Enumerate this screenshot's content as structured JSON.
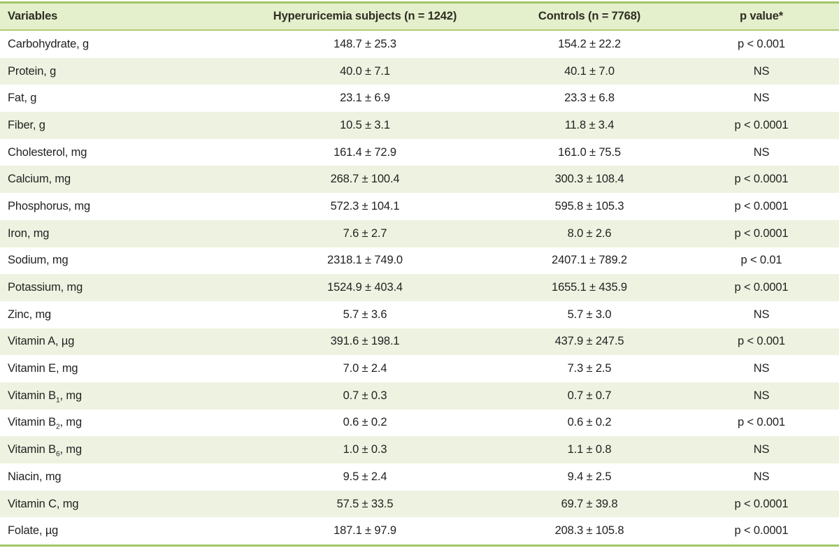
{
  "table": {
    "columns": [
      "Variables",
      "Hyperuricemia subjects (n = 1242)",
      "Controls (n = 7768)",
      "p value*"
    ],
    "rows": [
      {
        "label": "Carbohydrate, g",
        "sub": "",
        "suffix": "",
        "hyperuricemia": "148.7 ± 25.3",
        "controls": "154.2 ± 22.2",
        "p": "p < 0.001"
      },
      {
        "label": "Protein, g",
        "sub": "",
        "suffix": "",
        "hyperuricemia": "40.0 ± 7.1",
        "controls": "40.1 ± 7.0",
        "p": "NS"
      },
      {
        "label": "Fat, g",
        "sub": "",
        "suffix": "",
        "hyperuricemia": "23.1 ± 6.9",
        "controls": "23.3 ± 6.8",
        "p": "NS"
      },
      {
        "label": "Fiber, g",
        "sub": "",
        "suffix": "",
        "hyperuricemia": "10.5 ± 3.1",
        "controls": "11.8 ± 3.4",
        "p": "p < 0.0001"
      },
      {
        "label": "Cholesterol, mg",
        "sub": "",
        "suffix": "",
        "hyperuricemia": "161.4 ± 72.9",
        "controls": "161.0 ± 75.5",
        "p": "NS"
      },
      {
        "label": "Calcium, mg",
        "sub": "",
        "suffix": "",
        "hyperuricemia": "268.7 ± 100.4",
        "controls": "300.3 ± 108.4",
        "p": "p < 0.0001"
      },
      {
        "label": "Phosphorus, mg",
        "sub": "",
        "suffix": "",
        "hyperuricemia": "572.3 ± 104.1",
        "controls": "595.8 ± 105.3",
        "p": "p < 0.0001"
      },
      {
        "label": "Iron, mg",
        "sub": "",
        "suffix": "",
        "hyperuricemia": "7.6 ± 2.7",
        "controls": "8.0 ± 2.6",
        "p": "p < 0.0001"
      },
      {
        "label": "Sodium, mg",
        "sub": "",
        "suffix": "",
        "hyperuricemia": "2318.1 ± 749.0",
        "controls": "2407.1 ± 789.2",
        "p": "p < 0.01"
      },
      {
        "label": "Potassium, mg",
        "sub": "",
        "suffix": "",
        "hyperuricemia": "1524.9 ± 403.4",
        "controls": "1655.1 ± 435.9",
        "p": "p < 0.0001"
      },
      {
        "label": "Zinc, mg",
        "sub": "",
        "suffix": "",
        "hyperuricemia": "5.7 ± 3.6",
        "controls": "5.7 ± 3.0",
        "p": "NS"
      },
      {
        "label": "Vitamin A, µg",
        "sub": "",
        "suffix": "",
        "hyperuricemia": "391.6 ± 198.1",
        "controls": "437.9 ± 247.5",
        "p": "p < 0.001"
      },
      {
        "label": "Vitamin E, mg",
        "sub": "",
        "suffix": "",
        "hyperuricemia": "7.0 ± 2.4",
        "controls": "7.3 ± 2.5",
        "p": "NS"
      },
      {
        "label": "Vitamin B",
        "sub": "1",
        "suffix": ", mg",
        "hyperuricemia": "0.7 ± 0.3",
        "controls": "0.7 ± 0.7",
        "p": "NS"
      },
      {
        "label": "Vitamin B",
        "sub": "2",
        "suffix": ", mg",
        "hyperuricemia": "0.6 ± 0.2",
        "controls": "0.6 ± 0.2",
        "p": "p < 0.001"
      },
      {
        "label": "Vitamin B",
        "sub": "6",
        "suffix": ", mg",
        "hyperuricemia": "1.0 ± 0.3",
        "controls": "1.1 ± 0.8",
        "p": "NS"
      },
      {
        "label": "Niacin, mg",
        "sub": "",
        "suffix": "",
        "hyperuricemia": "9.5 ± 2.4",
        "controls": "9.4 ± 2.5",
        "p": "NS"
      },
      {
        "label": "Vitamin C, mg",
        "sub": "",
        "suffix": "",
        "hyperuricemia": "57.5 ± 33.5",
        "controls": "69.7 ± 39.8",
        "p": "p < 0.0001"
      },
      {
        "label": "Folate, µg",
        "sub": "",
        "suffix": "",
        "hyperuricemia": "187.1 ± 97.9",
        "controls": "208.3 ± 105.8",
        "p": "p < 0.0001"
      }
    ]
  },
  "colors": {
    "border_green": "#a3c566",
    "header_bg": "#e4efcc",
    "header_rule": "#aecb76",
    "zebra_green": "#eef3e1",
    "text": "#222222"
  }
}
